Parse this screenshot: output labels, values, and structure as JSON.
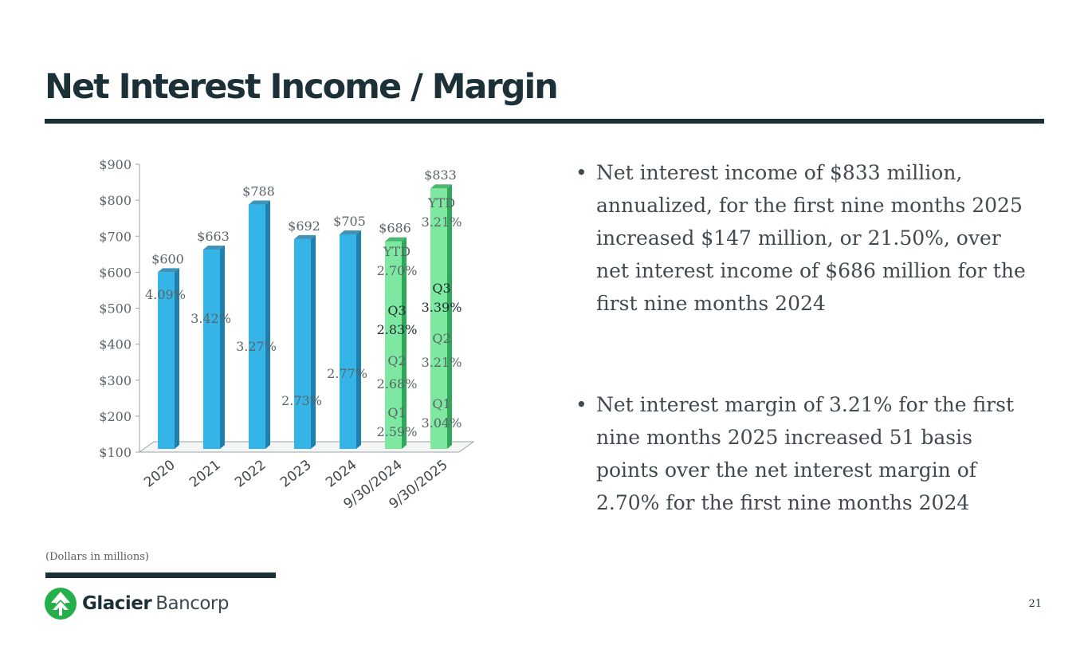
{
  "slide": {
    "title": "Net Interest Income / Margin",
    "footnote": "(Dollars in millions)",
    "page_number": "21"
  },
  "bullets": [
    "Net interest income of $833 million, annualized, for the first nine months 2025 increased $147 million, or 21.50%, over net interest income of $686 million for the first nine months 2024",
    "Net interest margin of 3.21% for the first nine months 2025 increased 51 basis points over the net interest margin of 2.70% for the first nine months 2024"
  ],
  "logo": {
    "name_bold": "Glacier",
    "name_light": "Bancorp"
  },
  "chart_data": {
    "type": "bar",
    "title": "",
    "xlabel": "",
    "ylabel": "",
    "ylim": [
      100,
      900
    ],
    "y_ticks": [
      "$100",
      "$200",
      "$300",
      "$400",
      "$500",
      "$600",
      "$700",
      "$800",
      "$900"
    ],
    "categories": [
      "2020",
      "2021",
      "2022",
      "2023",
      "2024",
      "9/30/2024",
      "9/30/2025"
    ],
    "values": [
      600,
      663,
      788,
      692,
      705,
      686,
      833
    ],
    "value_labels": [
      "$600",
      "$663",
      "$788",
      "$692",
      "$705",
      "$686",
      "$833"
    ],
    "margins": [
      "4.09%",
      "3.42%",
      "3.27%",
      "2.73%",
      "2.77%",
      null,
      null
    ],
    "quarterly_margins": {
      "9/30/2024": [
        {
          "label": "YTD",
          "value": "2.70%"
        },
        {
          "label": "Q3",
          "value": "2.83%"
        },
        {
          "label": "Q2",
          "value": "2.68%"
        },
        {
          "label": "Q1",
          "value": "2.59%"
        }
      ],
      "9/30/2025": [
        {
          "label": "YTD",
          "value": "3.21%"
        },
        {
          "label": "Q3",
          "value": "3.39%"
        },
        {
          "label": "Q2",
          "value": "3.21%"
        },
        {
          "label": "Q1",
          "value": "3.04%"
        }
      ]
    },
    "colors": {
      "annual": "#35b4e8",
      "annual_dark": "#1f7fad",
      "ytd": "#7ee8a0",
      "ytd_dark": "#2fa85a",
      "axis": "#9aa3a6",
      "text": "#5b6468"
    },
    "grid": false,
    "legend": "none"
  }
}
